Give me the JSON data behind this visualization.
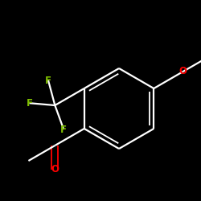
{
  "background_color": "#000000",
  "bond_color": "#ffffff",
  "atom_colors": {
    "O": "#ff0000",
    "F": "#7fbf00",
    "C": "#ffffff"
  },
  "figsize": [
    2.5,
    2.5
  ],
  "dpi": 100
}
